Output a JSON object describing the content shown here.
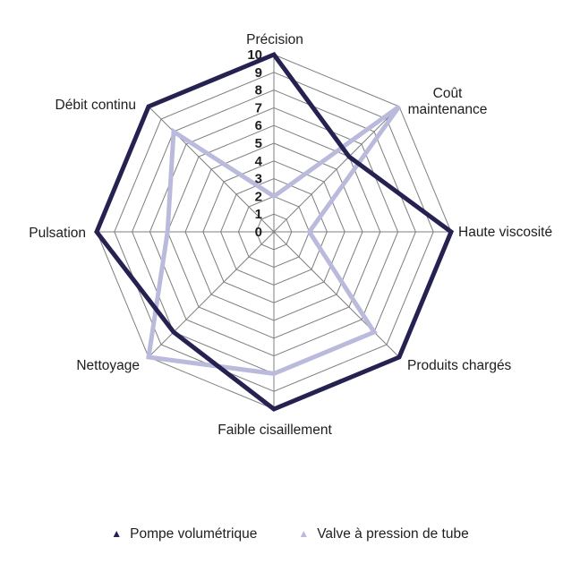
{
  "chart_data": {
    "type": "radar",
    "title": "",
    "categories": [
      "Précision",
      "Coût maintenance",
      "Haute viscosité",
      "Produits chargés",
      "Faible cisaillement",
      "Nettoyage",
      "Pulsation",
      "Débit continu"
    ],
    "series": [
      {
        "name": "Pompe volumétrique",
        "color": "#252151",
        "values": [
          10,
          6,
          10,
          10,
          10,
          8,
          10,
          10
        ]
      },
      {
        "name": "Valve à pression de tube",
        "color": "#babadc",
        "values": [
          2,
          10,
          2,
          8,
          8,
          10,
          6,
          8
        ]
      }
    ],
    "scale": {
      "min": 0,
      "max": 10,
      "step": 1,
      "tick_labels": [
        "0",
        "1",
        "2",
        "3",
        "4",
        "5",
        "6",
        "7",
        "8",
        "9",
        "10"
      ]
    },
    "grid": {
      "shape": "octagon",
      "rings": 10,
      "color": "#7f7f7f"
    },
    "legend_position": "bottom",
    "legend_marker": "triangle",
    "axes_count": 8
  },
  "colors": {
    "background": "#ffffff",
    "text": "#1d1d1d"
  }
}
